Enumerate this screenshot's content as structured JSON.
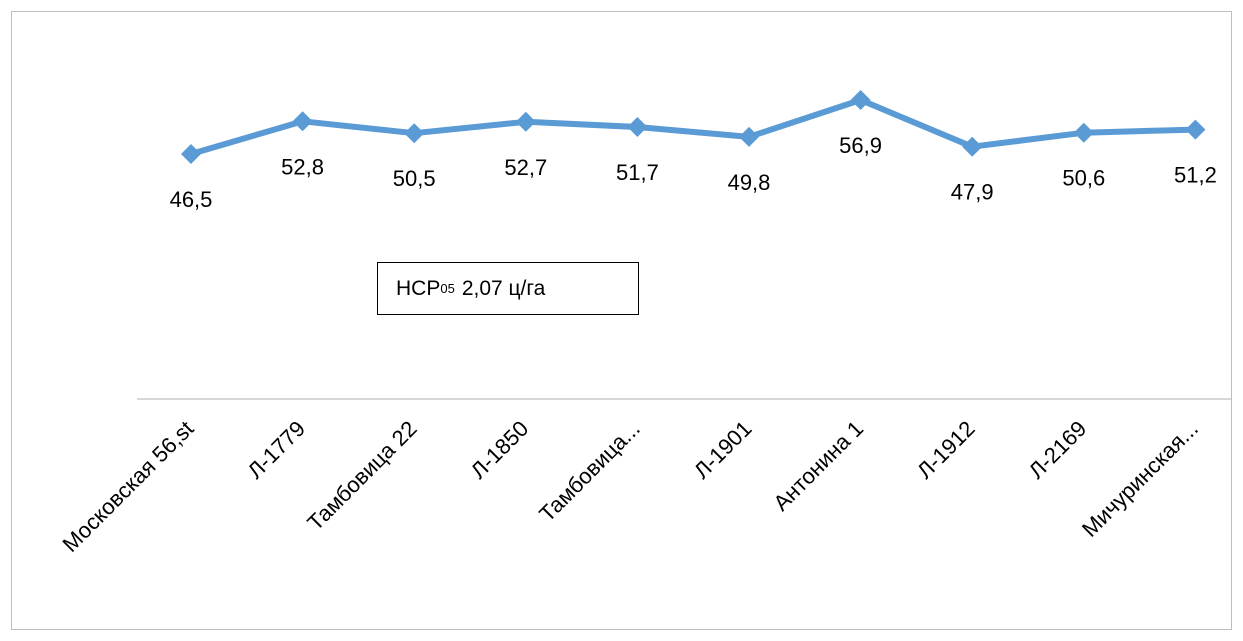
{
  "chart_data": {
    "type": "line",
    "categories": [
      "Московская 56,st",
      "Л-1779",
      "Тамбовица 22",
      "Л-1850",
      "Тамбовица...",
      "Л-1901",
      "Антонина 1",
      "Л-1912",
      "Л-2169",
      "Мичуринская..."
    ],
    "values": [
      46.5,
      52.8,
      50.5,
      52.7,
      51.7,
      49.8,
      56.9,
      47.9,
      50.6,
      51.2
    ],
    "data_labels": [
      "46,5",
      "52,8",
      "50,5",
      "52,7",
      "51,7",
      "49,8",
      "56,9",
      "47,9",
      "50,6",
      "51,2"
    ],
    "series_color": "#5b9bd5",
    "marker": "diamond",
    "title": "",
    "xlabel": "",
    "ylabel": "",
    "grid": false,
    "legend": false,
    "annotation": {
      "main": "НСР",
      "subscript": "05",
      "value": "2,07 ц/га"
    }
  }
}
